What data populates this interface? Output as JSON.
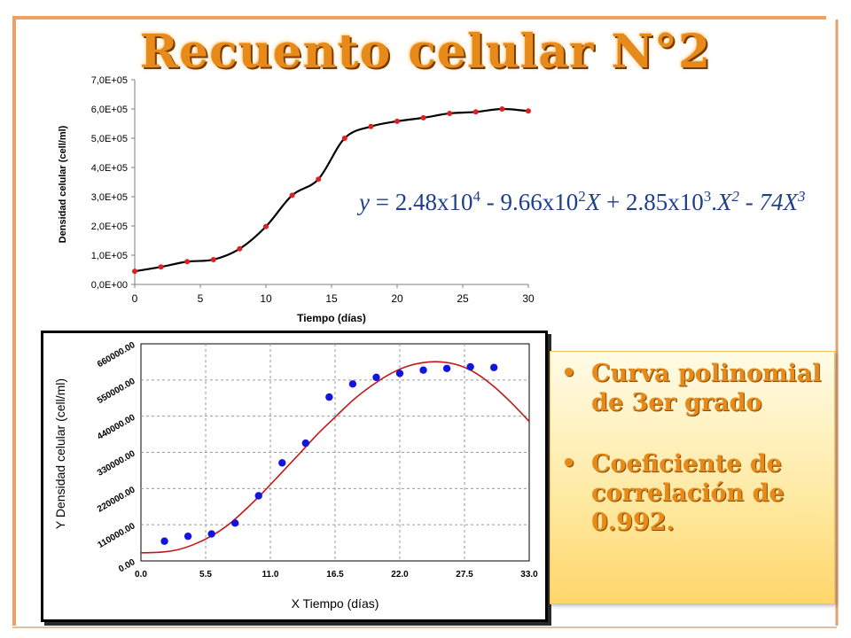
{
  "slide": {
    "title": "Recuento celular N°2",
    "formula": {
      "lhs": "y",
      "t1_coef": "2.48x10",
      "t1_exp": "4",
      "t2_coef": "9.66x10",
      "t2_exp": "2",
      "t2_var": "X",
      "t3_coef": "2.85x10",
      "t3_exp": "3",
      "t3_var": "X",
      "t3_var_exp": "2",
      "t4_coef": "74X",
      "t4_exp": "3"
    },
    "notes": [
      {
        "text": "Curva polinomial de 3er grado"
      },
      {
        "text": "Coeficiente de correlación de 0.992."
      }
    ],
    "colors": {
      "title": "#e88a1a",
      "frame": "#f0a060",
      "chart1_line": "#000000",
      "chart1_points": "#e02020",
      "chart2_points": "#1414e0",
      "chart2_curve": "#c01818",
      "formula": "#1f3f8a"
    }
  },
  "chart_data": [
    {
      "type": "scatter",
      "title": "",
      "xlabel": "Tiempo (días)",
      "ylabel": "Densidad celular (cell/ml)",
      "xlim": [
        0,
        30
      ],
      "ylim": [
        0,
        700000
      ],
      "x_ticks": [
        "0",
        "5",
        "10",
        "15",
        "20",
        "25",
        "30"
      ],
      "y_ticks": [
        "0,0E+00",
        "1,0E+05",
        "2,0E+05",
        "3,0E+05",
        "4,0E+05",
        "5,0E+05",
        "6,0E+05",
        "7,0E+05"
      ],
      "grid": false,
      "series": [
        {
          "style": "points+smooth-line",
          "x": [
            0,
            2,
            4,
            6,
            8,
            10,
            12,
            14,
            16,
            18,
            20,
            22,
            24,
            26,
            28,
            30
          ],
          "y": [
            45000,
            60000,
            78000,
            85000,
            122000,
            198000,
            305000,
            360000,
            500000,
            540000,
            558000,
            570000,
            585000,
            590000,
            600000,
            593000
          ]
        }
      ]
    },
    {
      "type": "scatter",
      "title": "",
      "xlabel": "X Tiempo (días)",
      "ylabel": "Y Densidad celular (cell/ml)",
      "xlim": [
        0,
        33
      ],
      "ylim": [
        0,
        660000
      ],
      "x_ticks": [
        "0.0",
        "5.5",
        "11.0",
        "16.5",
        "22.0",
        "27.5",
        "33.0"
      ],
      "y_ticks": [
        "0.00",
        "110000.00",
        "220000.00",
        "330000.00",
        "440000.00",
        "550000.00",
        "660000.00"
      ],
      "grid": true,
      "series": [
        {
          "style": "points",
          "x": [
            2,
            4,
            6,
            8,
            10,
            12,
            14,
            16,
            18,
            20,
            22,
            24,
            26,
            28,
            30
          ],
          "y": [
            60000,
            75000,
            82000,
            115000,
            198000,
            298000,
            358000,
            498000,
            538000,
            558000,
            570000,
            580000,
            585000,
            590000,
            588000
          ]
        },
        {
          "style": "curve",
          "x": [
            0,
            1.5,
            3,
            4.5,
            6,
            7.5,
            9,
            10.5,
            12,
            13.5,
            15,
            16.5,
            18,
            19.5,
            21,
            22.5,
            24,
            25.5,
            27,
            28.5,
            30,
            31.5,
            33
          ],
          "y": [
            24800,
            26000,
            33000,
            50000,
            76000,
            112000,
            160000,
            213000,
            270000,
            327000,
            385000,
            437000,
            488000,
            530000,
            565000,
            590000,
            603000,
            605000,
            595000,
            570000,
            530000,
            480000,
            424000
          ]
        }
      ]
    }
  ]
}
